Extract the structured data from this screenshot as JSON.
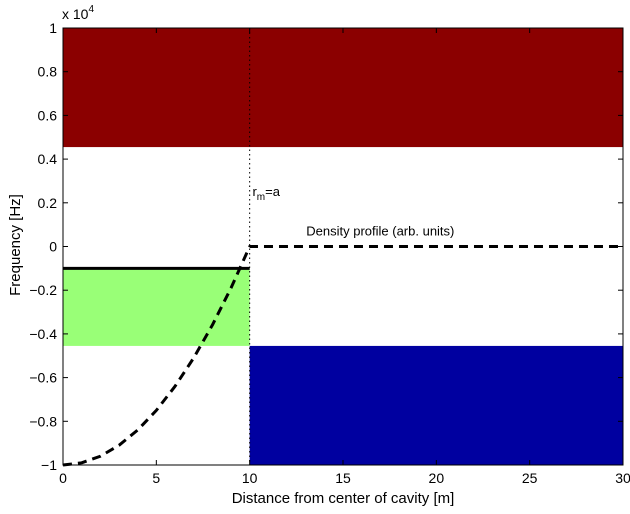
{
  "chart_data": {
    "type": "line",
    "title": "",
    "xlabel": "Distance from center of cavity  [m]",
    "ylabel": "Frequency  [Hz]",
    "y_exponent_label": "x 10",
    "y_exponent_power": "4",
    "xlim": [
      0,
      30
    ],
    "ylim": [
      -10000,
      10000
    ],
    "x_ticks": [
      0,
      5,
      10,
      15,
      20,
      25,
      30
    ],
    "x_tick_labels": [
      "0",
      "5",
      "10",
      "15",
      "20",
      "25",
      "30"
    ],
    "y_ticks": [
      -10000,
      -8000,
      -6000,
      -4000,
      -2000,
      0,
      2000,
      4000,
      6000,
      8000,
      10000
    ],
    "y_tick_labels": [
      "−1",
      "−0.8",
      "−0.6",
      "−0.4",
      "−0.2",
      "0",
      "0.2",
      "0.4",
      "0.6",
      "0.8",
      "1"
    ],
    "grid": false,
    "regions": [
      {
        "x": [
          0,
          30
        ],
        "y": [
          4550,
          10000
        ],
        "color": "#8b0000"
      },
      {
        "x": [
          10,
          30
        ],
        "y": [
          -10000,
          -4550
        ],
        "color": "#0000a0"
      },
      {
        "x": [
          0,
          10
        ],
        "y": [
          -4550,
          -1000
        ],
        "color": "#99ff77"
      }
    ],
    "series": [
      {
        "style": "dashed",
        "color": "#000000",
        "x": [
          0,
          1,
          2,
          3,
          4,
          5,
          6,
          7,
          8,
          9,
          10,
          10.001,
          30
        ],
        "y": [
          -10000,
          -9900,
          -9600,
          -9100,
          -8400,
          -7500,
          -6400,
          -5100,
          -3600,
          -1900,
          0,
          0,
          0
        ]
      },
      {
        "style": "solid",
        "color": "#000000",
        "x": [
          0,
          10
        ],
        "y": [
          -1000,
          -1000
        ]
      }
    ],
    "vertical_line": {
      "x": 10,
      "style": "dotted",
      "color": "#000000"
    },
    "annotations": [
      {
        "text": "r",
        "subscript": "m",
        "suffix": "=a",
        "x": 10.15,
        "y": 2300
      },
      {
        "text": "Density profile (arb. units)",
        "x": 17,
        "y": 500
      }
    ]
  }
}
